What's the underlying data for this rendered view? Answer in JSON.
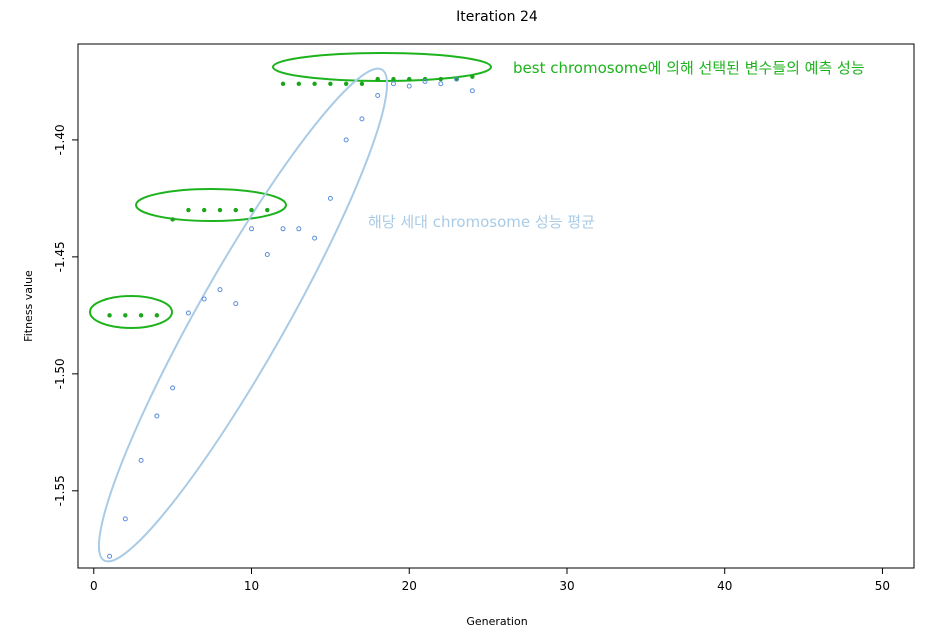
{
  "chart_data": {
    "type": "scatter",
    "title": "Iteration 24",
    "xlabel": "Generation",
    "ylabel": "Fitness value",
    "xlim": [
      -1,
      52
    ],
    "ylim": [
      -1.583,
      -1.359
    ],
    "x_ticks": [
      0,
      10,
      20,
      30,
      40,
      50
    ],
    "y_ticks": [
      -1.55,
      -1.5,
      -1.45,
      -1.4
    ],
    "x_tick_labels": [
      "0",
      "10",
      "20",
      "30",
      "40",
      "50"
    ],
    "y_tick_labels": [
      "-1.55",
      "-1.50",
      "-1.45",
      "-1.40"
    ],
    "grid": false,
    "series": [
      {
        "marker": "filled-dot",
        "color": "#1aa51a",
        "x": [
          1,
          2,
          3,
          4,
          5,
          6,
          7,
          8,
          9,
          10,
          11,
          12,
          13,
          14,
          15,
          16,
          17,
          18,
          19,
          20,
          21,
          22,
          23,
          24
        ],
        "y": [
          -1.475,
          -1.475,
          -1.475,
          -1.475,
          -1.434,
          -1.43,
          -1.43,
          -1.43,
          -1.43,
          -1.43,
          -1.43,
          -1.376,
          -1.376,
          -1.376,
          -1.376,
          -1.376,
          -1.376,
          -1.374,
          -1.374,
          -1.374,
          -1.374,
          -1.374,
          -1.374,
          -1.373
        ]
      },
      {
        "marker": "open-circle",
        "color": "#5b8ed8",
        "x": [
          1,
          2,
          3,
          4,
          5,
          6,
          7,
          8,
          9,
          10,
          11,
          12,
          13,
          14,
          15,
          16,
          17,
          18,
          19,
          20,
          21,
          22,
          23,
          24
        ],
        "y": [
          -1.578,
          -1.562,
          -1.537,
          -1.518,
          -1.506,
          -1.474,
          -1.468,
          -1.464,
          -1.47,
          -1.438,
          -1.449,
          -1.438,
          -1.438,
          -1.442,
          -1.425,
          -1.4,
          -1.391,
          -1.381,
          -1.376,
          -1.377,
          -1.375,
          -1.376,
          -1.374,
          -1.379
        ]
      }
    ],
    "annotations": [
      {
        "text": "best chromosome에 의해 선택된 변수들의 예측 성능",
        "color": "#1db31d"
      },
      {
        "text": "해당 세대 chromosome 성능 평균",
        "color": "#a9cbe6"
      }
    ]
  }
}
